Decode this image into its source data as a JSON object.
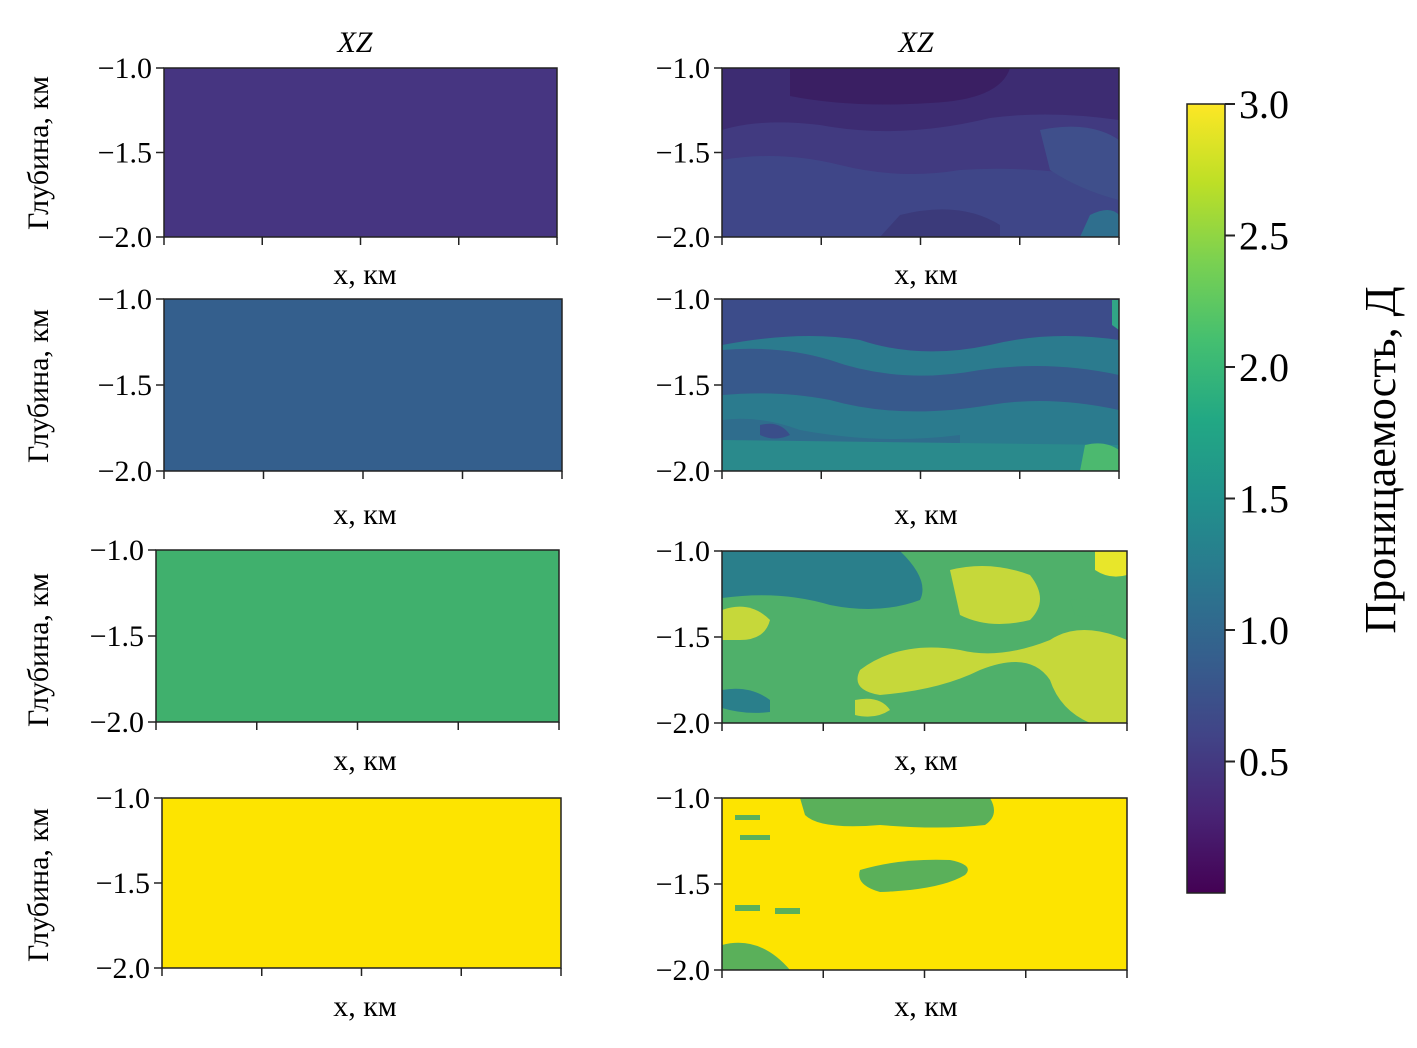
{
  "chart_data": {
    "type": "heatmap",
    "colorbar": {
      "label": "Проницаемость, Д",
      "ticks": [
        "3.0",
        "2.5",
        "2.0",
        "1.5",
        "1.0",
        "0.5"
      ],
      "tick_values": [
        3.0,
        2.5,
        2.0,
        1.5,
        1.0,
        0.5
      ],
      "range": [
        0.0,
        3.0
      ],
      "colormap": "viridis"
    },
    "panels": [
      {
        "row": 0,
        "col": 0,
        "title": "XZ",
        "xlabel": "x, км",
        "ylabel": "Глубина, км",
        "yticks": [
          "−1.0",
          "−1.5",
          "−2.0"
        ],
        "ylim": [
          -2.0,
          -1.0
        ],
        "field": "uniform",
        "base_value": 0.45
      },
      {
        "row": 0,
        "col": 1,
        "title": "XZ",
        "xlabel": "x, км",
        "ylabel": "",
        "yticks": [
          "−1.0",
          "−1.5",
          "−2.0"
        ],
        "ylim": [
          -2.0,
          -1.0
        ],
        "field": "heterogeneous",
        "base_value": 0.55
      },
      {
        "row": 1,
        "col": 0,
        "title": "",
        "xlabel": "x, км",
        "ylabel": "Глубина, км",
        "yticks": [
          "−1.0",
          "−1.5",
          "−2.0"
        ],
        "ylim": [
          -2.0,
          -1.0
        ],
        "field": "uniform",
        "base_value": 1.05
      },
      {
        "row": 1,
        "col": 1,
        "title": "",
        "xlabel": "x, км",
        "ylabel": "",
        "yticks": [
          "−1.0",
          "−1.5",
          "−2.0"
        ],
        "ylim": [
          -2.0,
          -1.0
        ],
        "field": "heterogeneous",
        "base_value": 1.1
      },
      {
        "row": 2,
        "col": 0,
        "title": "",
        "xlabel": "x, км",
        "ylabel": "Глубина, км",
        "yticks": [
          "−1.0",
          "−1.5",
          "−2.0"
        ],
        "ylim": [
          -2.0,
          -1.0
        ],
        "field": "uniform",
        "base_value": 2.05
      },
      {
        "row": 2,
        "col": 1,
        "title": "",
        "xlabel": "x, км",
        "ylabel": "",
        "yticks": [
          "−1.0",
          "−1.5",
          "−2.0"
        ],
        "ylim": [
          -2.0,
          -1.0
        ],
        "field": "heterogeneous",
        "base_value": 2.2
      },
      {
        "row": 3,
        "col": 0,
        "title": "",
        "xlabel": "x, км",
        "ylabel": "Глубина, км",
        "yticks": [
          "−1.0",
          "−1.5",
          "−2.0"
        ],
        "ylim": [
          -2.0,
          -1.0
        ],
        "field": "uniform",
        "base_value": 3.0
      },
      {
        "row": 3,
        "col": 1,
        "title": "",
        "xlabel": "x, км",
        "ylabel": "",
        "yticks": [
          "−1.0",
          "−1.5",
          "−2.0"
        ],
        "ylim": [
          -2.0,
          -1.0
        ],
        "field": "heterogeneous",
        "base_value": 2.85
      }
    ]
  }
}
